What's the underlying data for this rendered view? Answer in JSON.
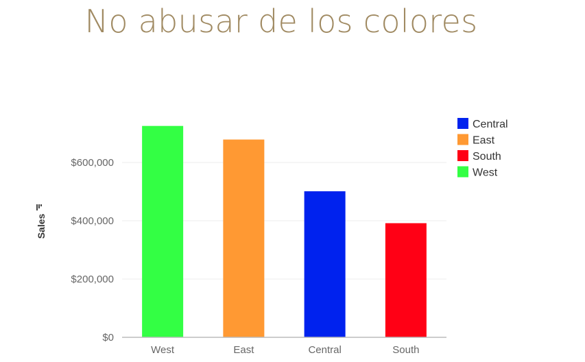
{
  "slide": {
    "title": "No abusar de los colores"
  },
  "chart_data": {
    "type": "bar",
    "categories": [
      "West",
      "East",
      "Central",
      "South"
    ],
    "values": [
      725458,
      678781,
      501240,
      391722
    ],
    "bar_colors": [
      "#33ff44",
      "#ff9933",
      "#0022ee",
      "#ff0015"
    ],
    "ylabel": "Sales",
    "ylim": [
      0,
      800000
    ],
    "yticks": [
      0,
      200000,
      400000,
      600000
    ],
    "ytick_labels": [
      "$0",
      "$200,000",
      "$400,000",
      "$600,000"
    ],
    "grid": true,
    "legend_position": "right",
    "legend": [
      {
        "label": "Central",
        "color": "#0022ee"
      },
      {
        "label": "East",
        "color": "#ff9933"
      },
      {
        "label": "South",
        "color": "#ff0015"
      },
      {
        "label": "West",
        "color": "#33ff44"
      }
    ]
  }
}
